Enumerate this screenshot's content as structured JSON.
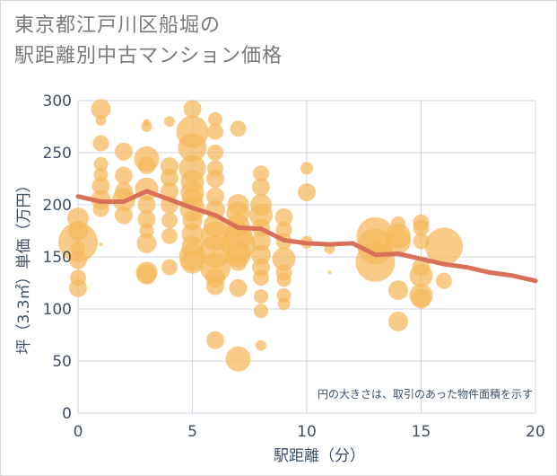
{
  "chart_data": {
    "type": "scatter",
    "title_lines": [
      "東京都江戸川区船堀の",
      "駅距離別中古マンション価格"
    ],
    "xlabel": "駅距離（分）",
    "ylabel": "坪（3.3㎡）単価（万円）",
    "xlim": [
      0,
      20
    ],
    "ylim": [
      0,
      300
    ],
    "x_ticks": [
      "0",
      "5",
      "10",
      "15",
      "20"
    ],
    "y_ticks": [
      "0",
      "50",
      "100",
      "150",
      "200",
      "250",
      "300"
    ],
    "grid": true,
    "note": "円の大きさは、取引のあった物件面積を示す",
    "colors": {
      "bubble": "#f5b85a",
      "line": "#d9705a",
      "grid": "#cfd6e0",
      "text": "#3d5066"
    },
    "bubbles": [
      {
        "x": 0,
        "y": 164,
        "s": 2.2
      },
      {
        "x": 0,
        "y": 187,
        "s": 1.2
      },
      {
        "x": 0,
        "y": 175,
        "s": 1.1
      },
      {
        "x": 0,
        "y": 147,
        "s": 1.0
      },
      {
        "x": 0,
        "y": 120,
        "s": 1.0
      },
      {
        "x": 0,
        "y": 130,
        "s": 0.9
      },
      {
        "x": 0,
        "y": 158,
        "s": 0.8
      },
      {
        "x": 1,
        "y": 292,
        "s": 1.1
      },
      {
        "x": 1,
        "y": 281,
        "s": 0.6
      },
      {
        "x": 1,
        "y": 259,
        "s": 0.9
      },
      {
        "x": 1,
        "y": 239,
        "s": 0.8
      },
      {
        "x": 1,
        "y": 229,
        "s": 0.8
      },
      {
        "x": 1,
        "y": 218,
        "s": 1.0
      },
      {
        "x": 1,
        "y": 205,
        "s": 1.1
      },
      {
        "x": 1,
        "y": 196,
        "s": 0.9
      },
      {
        "x": 1,
        "y": 162,
        "s": 0.2
      },
      {
        "x": 2,
        "y": 251,
        "s": 1.0
      },
      {
        "x": 2,
        "y": 228,
        "s": 1.0
      },
      {
        "x": 2,
        "y": 213,
        "s": 1.0
      },
      {
        "x": 2,
        "y": 205,
        "s": 1.3
      },
      {
        "x": 2,
        "y": 190,
        "s": 1.0
      },
      {
        "x": 3,
        "y": 279,
        "s": 0.4
      },
      {
        "x": 3,
        "y": 275,
        "s": 0.6
      },
      {
        "x": 3,
        "y": 244,
        "s": 1.4
      },
      {
        "x": 3,
        "y": 238,
        "s": 1.0
      },
      {
        "x": 3,
        "y": 215,
        "s": 1.3
      },
      {
        "x": 3,
        "y": 200,
        "s": 1.0
      },
      {
        "x": 3,
        "y": 186,
        "s": 1.0
      },
      {
        "x": 3,
        "y": 175,
        "s": 0.8
      },
      {
        "x": 3,
        "y": 163,
        "s": 1.1
      },
      {
        "x": 3,
        "y": 135,
        "s": 1.2
      },
      {
        "x": 3,
        "y": 133,
        "s": 1.1
      },
      {
        "x": 4,
        "y": 280,
        "s": 0.6
      },
      {
        "x": 4,
        "y": 237,
        "s": 1.0
      },
      {
        "x": 4,
        "y": 226,
        "s": 1.0
      },
      {
        "x": 4,
        "y": 213,
        "s": 1.0
      },
      {
        "x": 4,
        "y": 200,
        "s": 1.0
      },
      {
        "x": 4,
        "y": 185,
        "s": 0.9
      },
      {
        "x": 4,
        "y": 170,
        "s": 0.9
      },
      {
        "x": 4,
        "y": 140,
        "s": 0.9
      },
      {
        "x": 5,
        "y": 292,
        "s": 1.0
      },
      {
        "x": 5,
        "y": 270,
        "s": 1.8
      },
      {
        "x": 5,
        "y": 255,
        "s": 1.6
      },
      {
        "x": 5,
        "y": 235,
        "s": 1.5
      },
      {
        "x": 5,
        "y": 222,
        "s": 1.3
      },
      {
        "x": 5,
        "y": 212,
        "s": 1.3
      },
      {
        "x": 5,
        "y": 205,
        "s": 1.2
      },
      {
        "x": 5,
        "y": 196,
        "s": 1.4
      },
      {
        "x": 5,
        "y": 185,
        "s": 1.1
      },
      {
        "x": 5,
        "y": 172,
        "s": 1.2
      },
      {
        "x": 5,
        "y": 160,
        "s": 1.2
      },
      {
        "x": 5,
        "y": 150,
        "s": 1.5
      },
      {
        "x": 5,
        "y": 145,
        "s": 1.3
      },
      {
        "x": 6,
        "y": 282,
        "s": 0.8
      },
      {
        "x": 6,
        "y": 270,
        "s": 0.9
      },
      {
        "x": 6,
        "y": 250,
        "s": 0.9
      },
      {
        "x": 6,
        "y": 235,
        "s": 0.9
      },
      {
        "x": 6,
        "y": 225,
        "s": 1.0
      },
      {
        "x": 6,
        "y": 208,
        "s": 1.0
      },
      {
        "x": 6,
        "y": 195,
        "s": 1.1
      },
      {
        "x": 6,
        "y": 180,
        "s": 1.3
      },
      {
        "x": 6,
        "y": 170,
        "s": 1.6
      },
      {
        "x": 6,
        "y": 155,
        "s": 1.8
      },
      {
        "x": 6,
        "y": 140,
        "s": 1.7
      },
      {
        "x": 6,
        "y": 130,
        "s": 1.1
      },
      {
        "x": 6,
        "y": 122,
        "s": 1.0
      },
      {
        "x": 6,
        "y": 70,
        "s": 1.0
      },
      {
        "x": 7,
        "y": 273,
        "s": 0.9
      },
      {
        "x": 7,
        "y": 200,
        "s": 1.2
      },
      {
        "x": 7,
        "y": 192,
        "s": 1.3
      },
      {
        "x": 7,
        "y": 180,
        "s": 1.3
      },
      {
        "x": 7,
        "y": 170,
        "s": 1.6
      },
      {
        "x": 7,
        "y": 162,
        "s": 1.9
      },
      {
        "x": 7,
        "y": 152,
        "s": 1.4
      },
      {
        "x": 7,
        "y": 145,
        "s": 1.0
      },
      {
        "x": 7,
        "y": 120,
        "s": 1.0
      },
      {
        "x": 7,
        "y": 52,
        "s": 1.4
      },
      {
        "x": 8,
        "y": 230,
        "s": 0.9
      },
      {
        "x": 8,
        "y": 217,
        "s": 1.0
      },
      {
        "x": 8,
        "y": 200,
        "s": 1.2
      },
      {
        "x": 8,
        "y": 190,
        "s": 1.3
      },
      {
        "x": 8,
        "y": 178,
        "s": 1.0
      },
      {
        "x": 8,
        "y": 165,
        "s": 1.1
      },
      {
        "x": 8,
        "y": 152,
        "s": 1.1
      },
      {
        "x": 8,
        "y": 140,
        "s": 1.0
      },
      {
        "x": 8,
        "y": 130,
        "s": 0.9
      },
      {
        "x": 8,
        "y": 112,
        "s": 0.8
      },
      {
        "x": 8,
        "y": 98,
        "s": 0.8
      },
      {
        "x": 8,
        "y": 65,
        "s": 0.6
      },
      {
        "x": 9,
        "y": 188,
        "s": 1.0
      },
      {
        "x": 9,
        "y": 176,
        "s": 0.9
      },
      {
        "x": 9,
        "y": 165,
        "s": 0.9
      },
      {
        "x": 9,
        "y": 148,
        "s": 1.3
      },
      {
        "x": 9,
        "y": 135,
        "s": 0.9
      },
      {
        "x": 9,
        "y": 128,
        "s": 0.8
      },
      {
        "x": 9,
        "y": 113,
        "s": 0.8
      },
      {
        "x": 9,
        "y": 105,
        "s": 0.7
      },
      {
        "x": 10,
        "y": 235,
        "s": 0.7
      },
      {
        "x": 10,
        "y": 212,
        "s": 1.0
      },
      {
        "x": 10,
        "y": 164,
        "s": 0.7
      },
      {
        "x": 11,
        "y": 158,
        "s": 0.6
      },
      {
        "x": 11,
        "y": 135,
        "s": 0.2
      },
      {
        "x": 13,
        "y": 170,
        "s": 2.1
      },
      {
        "x": 13,
        "y": 160,
        "s": 2.0
      },
      {
        "x": 13,
        "y": 145,
        "s": 2.2
      },
      {
        "x": 14,
        "y": 182,
        "s": 0.8
      },
      {
        "x": 14,
        "y": 170,
        "s": 1.4
      },
      {
        "x": 14,
        "y": 165,
        "s": 1.4
      },
      {
        "x": 14,
        "y": 118,
        "s": 1.1
      },
      {
        "x": 14,
        "y": 88,
        "s": 1.1
      },
      {
        "x": 15,
        "y": 183,
        "s": 0.9
      },
      {
        "x": 15,
        "y": 178,
        "s": 0.9
      },
      {
        "x": 15,
        "y": 165,
        "s": 0.9
      },
      {
        "x": 15,
        "y": 140,
        "s": 1.0
      },
      {
        "x": 15,
        "y": 132,
        "s": 1.3
      },
      {
        "x": 15,
        "y": 113,
        "s": 1.3
      },
      {
        "x": 15,
        "y": 110,
        "s": 1.1
      },
      {
        "x": 16,
        "y": 160,
        "s": 2.1
      },
      {
        "x": 16,
        "y": 127,
        "s": 0.9
      }
    ],
    "trend": [
      {
        "x": 0,
        "y": 208
      },
      {
        "x": 1,
        "y": 203
      },
      {
        "x": 2,
        "y": 203
      },
      {
        "x": 3,
        "y": 213
      },
      {
        "x": 4,
        "y": 205
      },
      {
        "x": 5,
        "y": 197
      },
      {
        "x": 6,
        "y": 190
      },
      {
        "x": 7,
        "y": 178
      },
      {
        "x": 8,
        "y": 177
      },
      {
        "x": 9,
        "y": 166
      },
      {
        "x": 10,
        "y": 163
      },
      {
        "x": 11,
        "y": 162
      },
      {
        "x": 12,
        "y": 163
      },
      {
        "x": 13,
        "y": 152
      },
      {
        "x": 14,
        "y": 153
      },
      {
        "x": 15,
        "y": 148
      },
      {
        "x": 16,
        "y": 143
      },
      {
        "x": 17,
        "y": 140
      },
      {
        "x": 18,
        "y": 135
      },
      {
        "x": 19,
        "y": 132
      },
      {
        "x": 20,
        "y": 127
      }
    ]
  }
}
